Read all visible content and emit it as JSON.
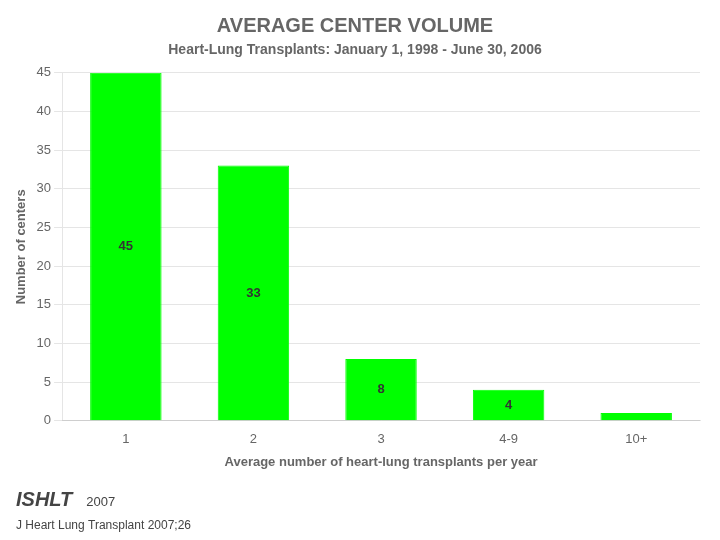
{
  "chart_data": {
    "type": "bar",
    "title": "AVERAGE CENTER VOLUME",
    "subtitle": "Heart-Lung Transplants: January 1, 1998 - June 30, 2006",
    "categories": [
      "1",
      "2",
      "3",
      "4-9",
      "10+"
    ],
    "values": [
      45,
      33,
      8,
      4,
      1
    ],
    "value_labels": [
      "45",
      "33",
      "8",
      "4",
      null
    ],
    "data_labels": true,
    "color": "#00FF00",
    "x_label": "Average number of heart-lung transplants per year",
    "y_label": "Number of centers",
    "ylim": [
      0,
      45
    ],
    "yticks": [
      0,
      5,
      10,
      15,
      20,
      25,
      30,
      35,
      40,
      45
    ],
    "grid": true,
    "annotations": [
      "ISHLT",
      "2007",
      "J Heart Lung Transplant 2007;26"
    ]
  }
}
